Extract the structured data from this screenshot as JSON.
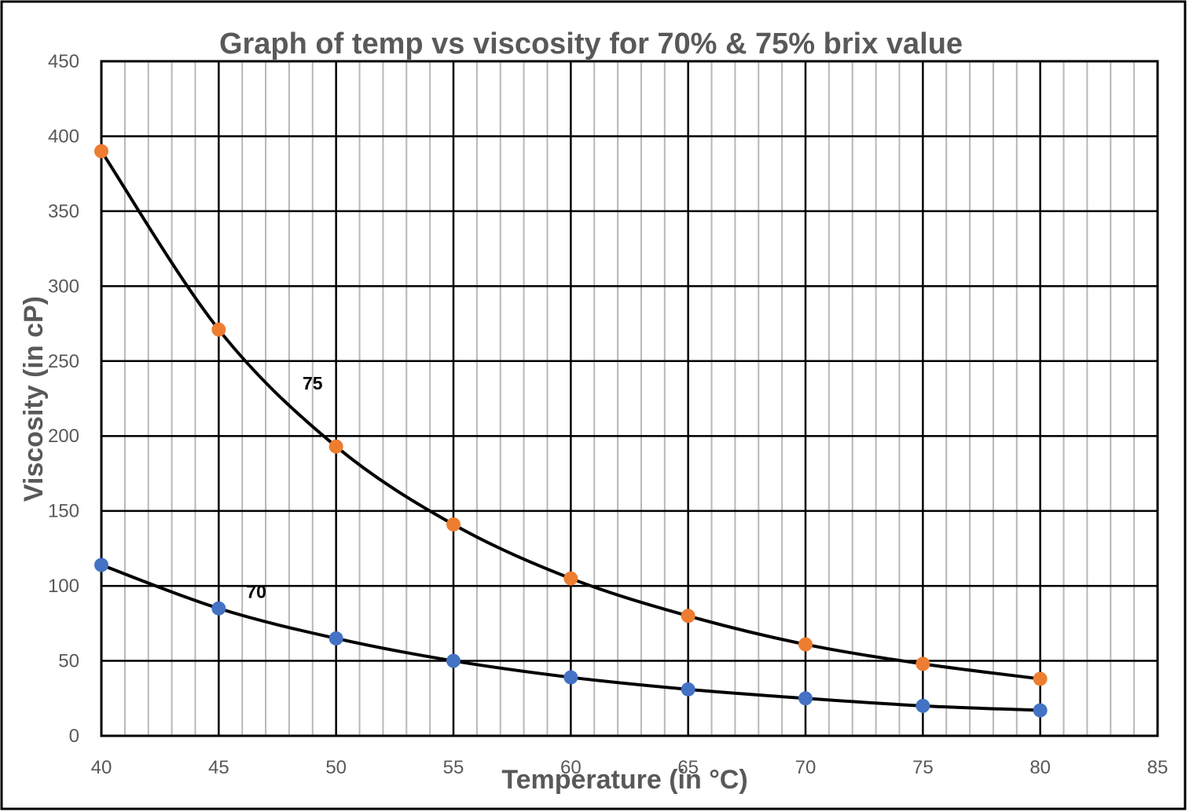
{
  "chart_data": {
    "type": "scatter",
    "title": "Graph of temp vs viscosity for 70% & 75% brix value",
    "xlabel": "Temperature (in °C)",
    "ylabel": "Viscosity (in cP)",
    "xlim": [
      40,
      85
    ],
    "ylim": [
      0,
      450
    ],
    "x_ticks": [
      40,
      45,
      50,
      55,
      60,
      65,
      70,
      75,
      80,
      85
    ],
    "y_ticks": [
      0,
      50,
      100,
      150,
      200,
      250,
      300,
      350,
      400,
      450
    ],
    "x_minor_step": 1,
    "grid": true,
    "legend": "none",
    "series": [
      {
        "name": "75",
        "color": "#ED7D31",
        "line_color": "#000000",
        "label_at": {
          "x": 49,
          "y": 231
        },
        "x": [
          40,
          45,
          50,
          55,
          60,
          65,
          70,
          75,
          80
        ],
        "y": [
          390,
          271,
          193,
          141,
          105,
          80,
          61,
          48,
          38
        ]
      },
      {
        "name": "70",
        "color": "#4472C4",
        "line_color": "#000000",
        "label_at": {
          "x": 46.6,
          "y": 92
        },
        "x": [
          40,
          45,
          50,
          55,
          60,
          65,
          70,
          75,
          80
        ],
        "y": [
          114,
          85,
          65,
          50,
          39,
          31,
          25,
          20,
          17
        ]
      }
    ]
  }
}
